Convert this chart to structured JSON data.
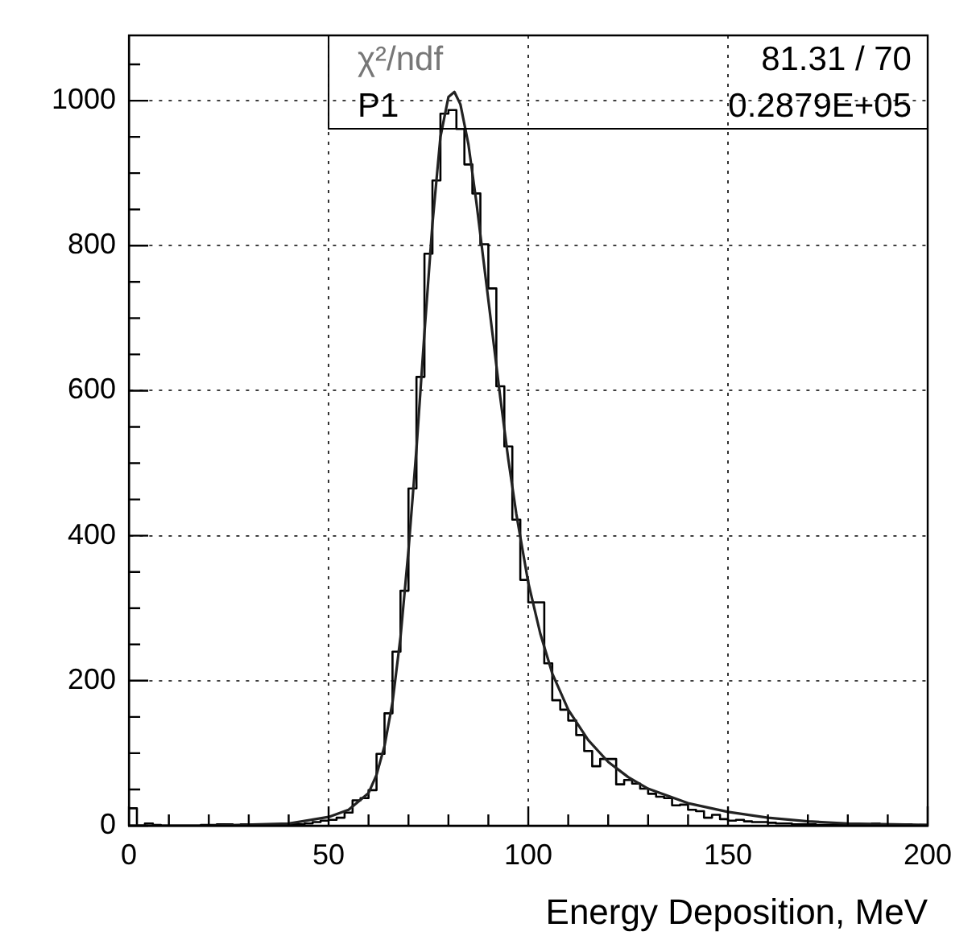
{
  "chart_data": {
    "type": "histogram",
    "xlabel": "Energy Deposition, MeV",
    "bins": [
      0,
      2,
      4,
      6,
      8,
      10,
      12,
      14,
      16,
      18,
      20,
      22,
      24,
      26,
      28,
      30,
      32,
      34,
      36,
      38,
      40,
      42,
      44,
      46,
      48,
      50,
      52,
      54,
      56,
      58,
      60,
      62,
      64,
      66,
      68,
      70,
      72,
      74,
      76,
      78,
      80,
      82,
      84,
      86,
      88,
      90,
      92,
      94,
      96,
      98,
      100,
      102,
      104,
      106,
      108,
      110,
      112,
      114,
      116,
      118,
      120,
      122,
      124,
      126,
      128,
      130,
      132,
      134,
      136,
      138,
      140,
      142,
      144,
      146,
      148,
      150,
      152,
      154,
      156,
      158,
      160,
      162,
      164,
      166,
      168,
      170,
      172,
      174,
      176,
      178,
      180,
      182,
      184,
      186,
      188,
      190,
      192,
      194,
      196,
      198,
      200
    ],
    "color": "#000000",
    "values": [
      24,
      0,
      3,
      1,
      0,
      0,
      0,
      0,
      0,
      1,
      1,
      2,
      2,
      0,
      2,
      1,
      0,
      1,
      1,
      1,
      2,
      2,
      3,
      5,
      7,
      8,
      11,
      18,
      35,
      38,
      49,
      99,
      155,
      240,
      324,
      465,
      619,
      789,
      890,
      982,
      987,
      961,
      912,
      872,
      802,
      741,
      606,
      523,
      422,
      339,
      308,
      308,
      224,
      173,
      160,
      145,
      125,
      103,
      82,
      92,
      92,
      57,
      63,
      58,
      51,
      44,
      40,
      38,
      28,
      29,
      22,
      20,
      11,
      15,
      9,
      7,
      8,
      6,
      5,
      5,
      4,
      3,
      3,
      2,
      2,
      2,
      1,
      1,
      1,
      1,
      1,
      0,
      1,
      3,
      0,
      1,
      0,
      2,
      0,
      1
    ],
    "series": [
      {
        "type": "line",
        "color": "#222222",
        "x": [
          0,
          20,
          40,
          50,
          55,
          60,
          62,
          64,
          66,
          68,
          70,
          72,
          74,
          76,
          78,
          80,
          81.5,
          83,
          85,
          87,
          89,
          91,
          93,
          95,
          97,
          100,
          103,
          106,
          110,
          115,
          120,
          125,
          130,
          140,
          150,
          160,
          170,
          180,
          200
        ],
        "values": [
          0,
          0,
          3,
          12,
          22,
          45,
          70,
          110,
          170,
          260,
          380,
          520,
          680,
          830,
          950,
          1005,
          1012,
          995,
          940,
          860,
          770,
          680,
          590,
          505,
          430,
          335,
          265,
          210,
          160,
          118,
          88,
          67,
          51,
          31,
          19,
          11,
          6,
          3,
          1
        ]
      }
    ],
    "xlim": [
      0,
      200
    ],
    "xticks": [
      0,
      {
        "value": 10,
        "label": null
      },
      {
        "value": 20,
        "label": null
      },
      {
        "value": 30,
        "label": null
      },
      {
        "value": 40,
        "label": null
      },
      50,
      {
        "value": 60,
        "label": null
      },
      {
        "value": 70,
        "label": null
      },
      {
        "value": 80,
        "label": null
      },
      {
        "value": 90,
        "label": null
      },
      100,
      {
        "value": 110,
        "label": null
      },
      {
        "value": 120,
        "label": null
      },
      {
        "value": 130,
        "label": null
      },
      {
        "value": 140,
        "label": null
      },
      150,
      {
        "value": 160,
        "label": null
      },
      {
        "value": 170,
        "label": null
      },
      {
        "value": 180,
        "label": null
      },
      {
        "value": 190,
        "label": null
      },
      200
    ],
    "ylim": [
      0,
      1090
    ],
    "yticks": [
      0,
      {
        "value": 50,
        "label": null
      },
      {
        "value": 100,
        "label": null
      },
      {
        "value": 150,
        "label": null
      },
      200,
      {
        "value": 250,
        "label": null
      },
      {
        "value": 300,
        "label": null
      },
      {
        "value": 350,
        "label": null
      },
      400,
      {
        "value": 450,
        "label": null
      },
      {
        "value": 500,
        "label": null
      },
      {
        "value": 550,
        "label": null
      },
      600,
      {
        "value": 650,
        "label": null
      },
      {
        "value": 700,
        "label": null
      },
      {
        "value": 750,
        "label": null
      },
      800,
      {
        "value": 850,
        "label": null
      },
      {
        "value": 900,
        "label": null
      },
      {
        "value": 950,
        "label": null
      },
      1000,
      {
        "value": 1050,
        "label": null
      }
    ],
    "grid": true,
    "annotations": [
      "χ²/ndf",
      "81.31 / 70",
      "P1",
      "0.2879E+05"
    ]
  }
}
